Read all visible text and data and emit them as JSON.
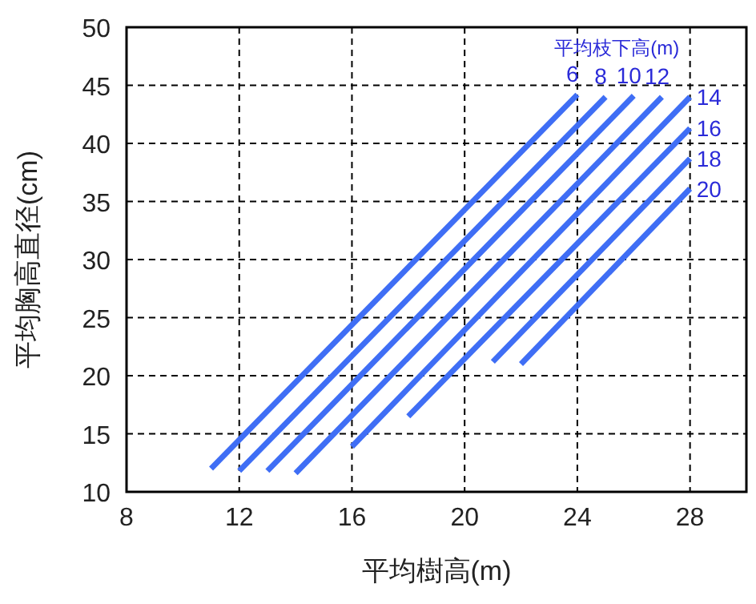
{
  "chart_data": {
    "type": "line",
    "xlabel": "平均樹高(m)",
    "ylabel": "平均胸高直径(cm)",
    "legend_title": "平均枝下高(m)",
    "xlim": [
      8,
      30
    ],
    "xticks": [
      8,
      12,
      16,
      20,
      24,
      28
    ],
    "ylim": [
      10,
      50
    ],
    "yticks": [
      10,
      15,
      20,
      25,
      30,
      35,
      40,
      45,
      50
    ],
    "grid": true,
    "line_style": "solid",
    "series": [
      {
        "name": "6",
        "color": "#3f6ef5",
        "x": [
          11,
          24
        ],
        "values": [
          12,
          44.2
        ]
      },
      {
        "name": "8",
        "color": "#3f6ef5",
        "x": [
          12,
          25
        ],
        "values": [
          11.8,
          44
        ]
      },
      {
        "name": "10",
        "color": "#3f6ef5",
        "x": [
          13,
          26
        ],
        "values": [
          11.8,
          44.1
        ]
      },
      {
        "name": "12",
        "color": "#3f6ef5",
        "x": [
          14,
          27
        ],
        "values": [
          11.6,
          44
        ]
      },
      {
        "name": "14",
        "color": "#3f6ef5",
        "x": [
          16,
          28
        ],
        "values": [
          13.9,
          44
        ]
      },
      {
        "name": "16",
        "color": "#3f6ef5",
        "x": [
          18,
          28
        ],
        "values": [
          16.5,
          41.3
        ]
      },
      {
        "name": "18",
        "color": "#3f6ef5",
        "x": [
          21,
          28
        ],
        "values": [
          21.2,
          38.7
        ]
      },
      {
        "name": "20",
        "color": "#3f6ef5",
        "x": [
          22,
          28
        ],
        "values": [
          21,
          36.1
        ]
      }
    ]
  }
}
